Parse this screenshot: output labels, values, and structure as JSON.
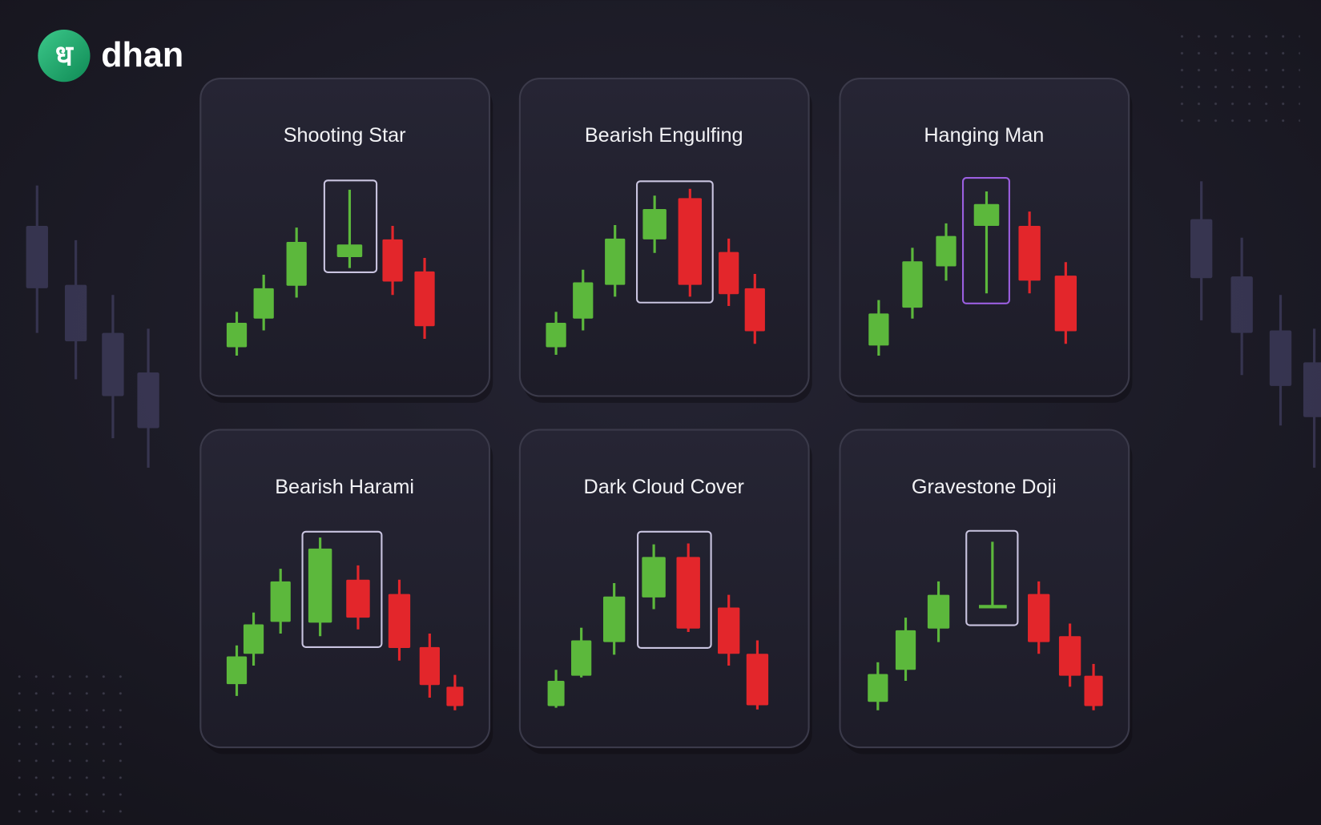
{
  "logo": {
    "glyph": "ध",
    "name": "dhan"
  },
  "cards": [
    {
      "title": "Shooting Star"
    },
    {
      "title": "Bearish Engulfing"
    },
    {
      "title": "Hanging Man"
    },
    {
      "title": "Bearish Harami"
    },
    {
      "title": "Dark Cloud Cover"
    },
    {
      "title": "Gravestone Doji"
    }
  ]
}
